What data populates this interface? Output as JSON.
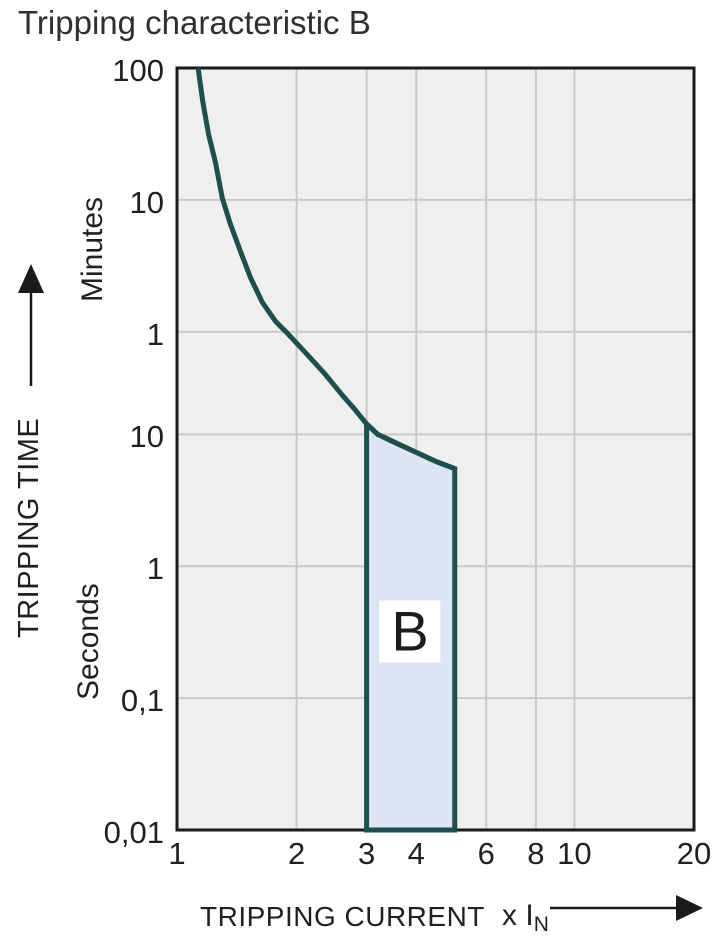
{
  "title": "Tripping characteristic B",
  "y_axis": {
    "title": "TRIPPING TIME",
    "unit_upper": "Minutes",
    "unit_lower": "Seconds",
    "ticks": [
      {
        "label": "100",
        "seconds": 6000
      },
      {
        "label": "10",
        "seconds": 600
      },
      {
        "label": "1",
        "seconds": 60
      },
      {
        "label": "10",
        "seconds": 10
      },
      {
        "label": "1",
        "seconds": 1
      },
      {
        "label": "0,1",
        "seconds": 0.1
      },
      {
        "label": "0,01",
        "seconds": 0.01
      }
    ]
  },
  "x_axis": {
    "title": "TRIPPING CURRENT",
    "unit_prefix": "x",
    "unit_main": "I",
    "unit_sub": "N",
    "ticks": [
      {
        "label": "1",
        "value": 1
      },
      {
        "label": "2",
        "value": 2
      },
      {
        "label": "3",
        "value": 3
      },
      {
        "label": "4",
        "value": 4
      },
      {
        "label": "6",
        "value": 6
      },
      {
        "label": "8",
        "value": 8
      },
      {
        "label": "10",
        "value": 10
      },
      {
        "label": "20",
        "value": 20
      }
    ]
  },
  "chart_data": {
    "type": "line",
    "x_scale": "log",
    "y_scale": "log",
    "x_domain": [
      1,
      20
    ],
    "y_domain_seconds": [
      0.01,
      6000
    ],
    "x_gridlines": [
      2,
      3,
      4,
      6,
      8,
      10
    ],
    "y_gridlines_seconds": [
      600,
      60,
      10,
      1,
      0.1
    ],
    "grid_on": true,
    "series": [
      {
        "name": "thermal-trip-curve",
        "points": [
          [
            1.13,
            6000
          ],
          [
            1.16,
            3400
          ],
          [
            1.2,
            1900
          ],
          [
            1.25,
            1150
          ],
          [
            1.3,
            620
          ],
          [
            1.36,
            400
          ],
          [
            1.44,
            250
          ],
          [
            1.53,
            155
          ],
          [
            1.64,
            100
          ],
          [
            1.77,
            72
          ],
          [
            1.9,
            58
          ],
          [
            2.1,
            42
          ],
          [
            2.35,
            29
          ],
          [
            2.6,
            20
          ],
          [
            2.8,
            15.5
          ],
          [
            3.0,
            12
          ]
        ]
      }
    ],
    "band": {
      "label": "B",
      "x_from": 3,
      "x_to": 5,
      "top_points": [
        [
          3.0,
          12
        ],
        [
          3.2,
          10
        ],
        [
          3.5,
          8.8
        ],
        [
          4.0,
          7.3
        ],
        [
          4.5,
          6.2
        ],
        [
          5.0,
          5.5
        ]
      ],
      "bottom_seconds": 0.01,
      "label_pos": [
        3.86,
        0.32
      ]
    },
    "colors": {
      "curve": "#1e4f4d",
      "plot_bg": "#efefee",
      "grid": "#c9c9c9",
      "border": "#1a1a1a",
      "band_fill": "#dde4f3",
      "band_label_bg": "#ffffff",
      "text": "#231f20"
    }
  }
}
